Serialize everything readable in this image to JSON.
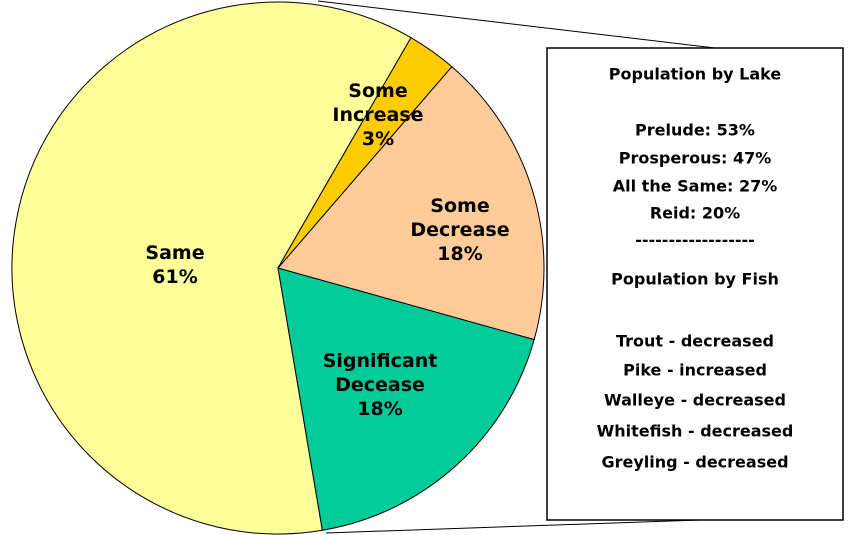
{
  "chart_data": {
    "type": "pie",
    "categories": [
      "Some Increase",
      "Some Decrease",
      "Significant Decease",
      "Same"
    ],
    "values": [
      3,
      18,
      18,
      61
    ],
    "value_labels": [
      "3%",
      "18%",
      "18%",
      "61%"
    ],
    "colors": [
      "#ffcc00",
      "#ffcc99",
      "#00cc99",
      "#ffff99"
    ],
    "annotation": {
      "lines": [
        "Population by Lake",
        "Prelude: 53%",
        "Prosperous: 47%",
        "All the Same: 27%",
        "Reid: 20%",
        "------------------",
        "Population by Fish",
        "Trout - decreased",
        "Pike - increased",
        "Walleye - decreased",
        "Whitefish - decreased",
        "Greyling - decreased"
      ]
    }
  }
}
